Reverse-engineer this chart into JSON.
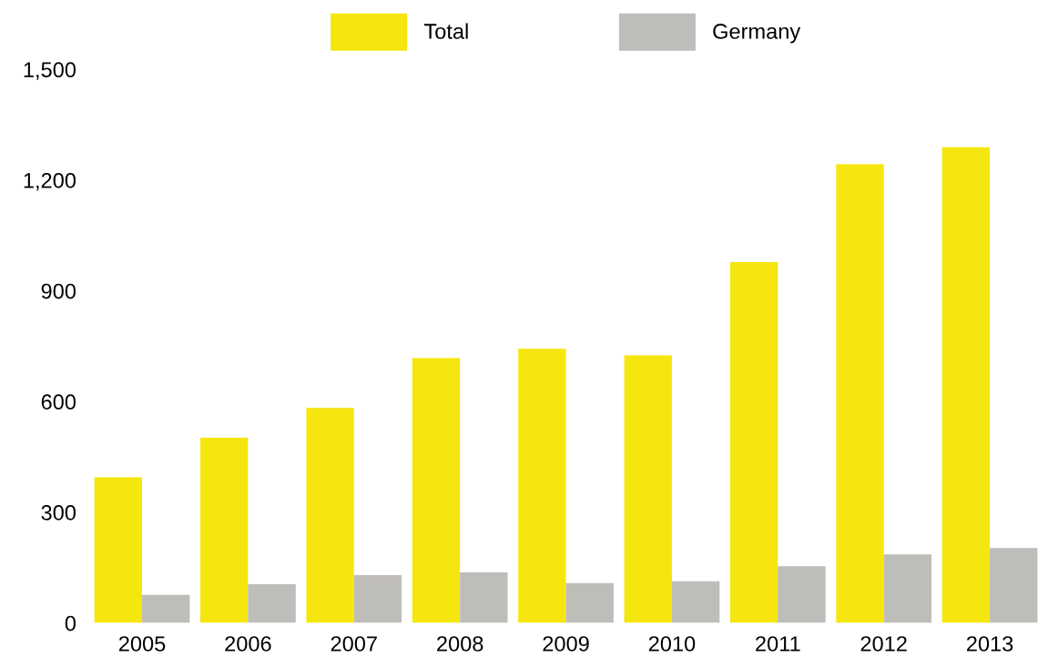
{
  "chart_data": {
    "type": "bar",
    "categories": [
      "2005",
      "2006",
      "2007",
      "2008",
      "2009",
      "2010",
      "2011",
      "2012",
      "2013"
    ],
    "series": [
      {
        "name": "Total",
        "color": "#f5e60f",
        "values": [
          395,
          502,
          583,
          718,
          743,
          725,
          978,
          1243,
          1289
        ]
      },
      {
        "name": "Germany",
        "color": "#bfbdba",
        "values": [
          76,
          105,
          130,
          137,
          108,
          113,
          154,
          186,
          203
        ]
      }
    ],
    "ylim": [
      0,
      1500
    ],
    "yticks": [
      0,
      {
        "value": 300,
        "label": "300"
      },
      {
        "value": 600,
        "label": "600"
      },
      {
        "value": 900,
        "label": "900"
      },
      {
        "value": 1200,
        "label": "1,200"
      },
      {
        "value": 1500,
        "label": "1,500"
      }
    ],
    "grid": false,
    "legend": "top"
  }
}
